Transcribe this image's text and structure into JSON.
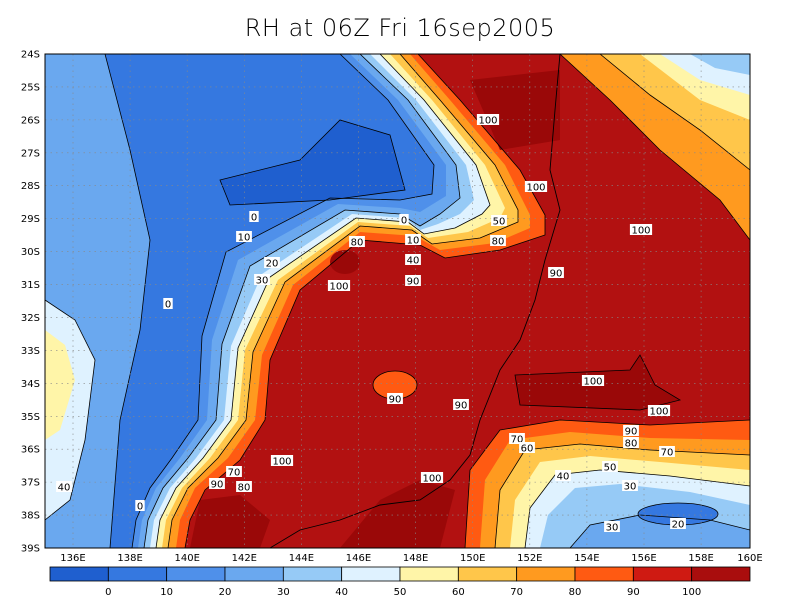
{
  "title": "RH at 06Z Fri 16sep2005",
  "map": {
    "variable": "RH",
    "lat_labels": [
      "24S",
      "25S",
      "26S",
      "27S",
      "28S",
      "29S",
      "30S",
      "31S",
      "32S",
      "33S",
      "34S",
      "35S",
      "36S",
      "37S",
      "38S",
      "39S"
    ],
    "lon_labels": [
      "136E",
      "138E",
      "140E",
      "142E",
      "144E",
      "146E",
      "148E",
      "150E",
      "152E",
      "154E",
      "156E",
      "158E",
      "160E"
    ],
    "contour_labels": [
      {
        "text": "0"
      },
      {
        "text": "0"
      },
      {
        "text": "0"
      },
      {
        "text": "0"
      },
      {
        "text": "10"
      },
      {
        "text": "10"
      },
      {
        "text": "20"
      },
      {
        "text": "30"
      },
      {
        "text": "40"
      },
      {
        "text": "40"
      },
      {
        "text": "40"
      },
      {
        "text": "50"
      },
      {
        "text": "50"
      },
      {
        "text": "70"
      },
      {
        "text": "70"
      },
      {
        "text": "70"
      },
      {
        "text": "80"
      },
      {
        "text": "80"
      },
      {
        "text": "80"
      },
      {
        "text": "80"
      },
      {
        "text": "90"
      },
      {
        "text": "90"
      },
      {
        "text": "90"
      },
      {
        "text": "90"
      },
      {
        "text": "90"
      },
      {
        "text": "90"
      },
      {
        "text": "100"
      },
      {
        "text": "100"
      },
      {
        "text": "100"
      },
      {
        "text": "100"
      },
      {
        "text": "100"
      },
      {
        "text": "100"
      },
      {
        "text": "100"
      },
      {
        "text": "100"
      },
      {
        "text": "60"
      },
      {
        "text": "30"
      },
      {
        "text": "20"
      },
      {
        "text": "30"
      }
    ]
  },
  "colorbar": {
    "colors": [
      "#1f5fcf",
      "#3578e0",
      "#4f90ea",
      "#6aa8ef",
      "#96caf6",
      "#dff2ff",
      "#fff5a8",
      "#ffc64a",
      "#ff9a1f",
      "#ff5a12",
      "#cf1a12",
      "#a90d0d"
    ],
    "labels": [
      "0",
      "10",
      "20",
      "30",
      "40",
      "50",
      "60",
      "70",
      "80",
      "90",
      "100"
    ]
  },
  "chart_data": {
    "type": "heatmap",
    "title": "RH at 06Z Fri 16sep2005",
    "x_range": [
      "135.5E",
      "160E"
    ],
    "y_range": [
      "24S",
      "39S"
    ],
    "levels": [
      0,
      10,
      20,
      30,
      40,
      50,
      60,
      70,
      80,
      90,
      100
    ]
  }
}
